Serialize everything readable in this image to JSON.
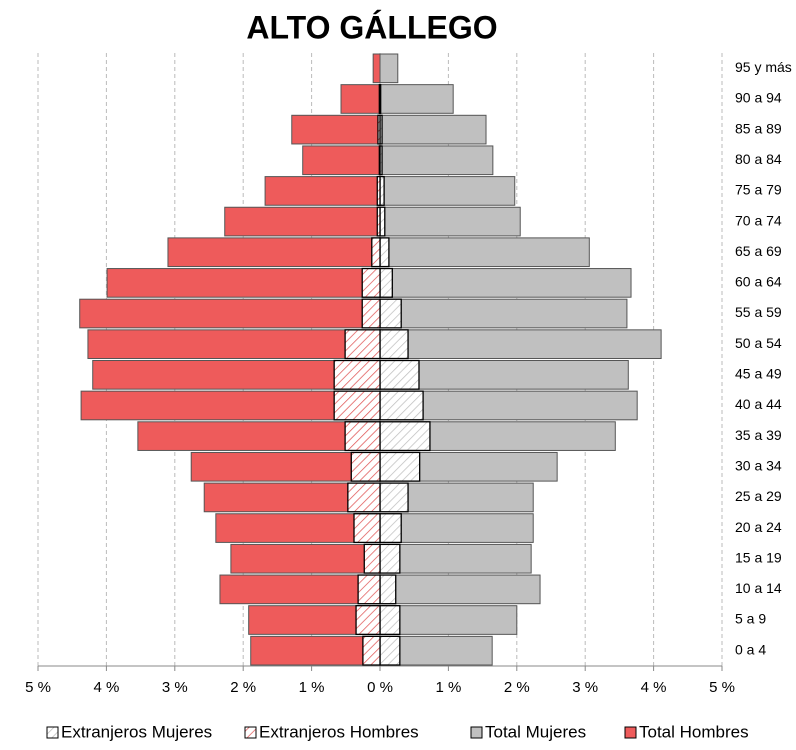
{
  "chart_data": {
    "type": "pyramid",
    "title": "ALTO GÁLLEGO",
    "categories": [
      "0 a 4",
      "5 a 9",
      "10 a 14",
      "15 a 19",
      "20 a 24",
      "25 a 29",
      "30 a 34",
      "35 a 39",
      "40 a 44",
      "45 a 49",
      "50 a 54",
      "55 a 59",
      "60 a 64",
      "65 a 69",
      "70 a 74",
      "75 a 79",
      "80 a 84",
      "85 a 89",
      "90 a 94",
      "95 y más"
    ],
    "series": [
      {
        "name": "Extranjeros Mujeres",
        "color": "#bfbfbf",
        "pattern": "hatch",
        "values": [
          0.29,
          0.29,
          0.23,
          0.29,
          0.31,
          0.41,
          0.58,
          0.73,
          0.63,
          0.57,
          0.41,
          0.31,
          0.18,
          0.13,
          0.07,
          0.06,
          0.03,
          0.03,
          0.01,
          0
        ]
      },
      {
        "name": "Extranjeros Hombres",
        "color": "#e05555",
        "pattern": "hatch",
        "values": [
          -0.25,
          -0.35,
          -0.32,
          -0.23,
          -0.38,
          -0.47,
          -0.42,
          -0.51,
          -0.67,
          -0.67,
          -0.51,
          -0.26,
          -0.26,
          -0.12,
          -0.04,
          -0.04,
          -0.01,
          -0.03,
          -0.01,
          0
        ]
      },
      {
        "name": "Total Mujeres",
        "color": "#c0c0c0",
        "values": [
          1.64,
          2.0,
          2.34,
          2.21,
          2.24,
          2.24,
          2.59,
          3.44,
          3.76,
          3.63,
          4.11,
          3.61,
          3.67,
          3.06,
          2.05,
          1.97,
          1.65,
          1.55,
          1.07,
          0.26
        ]
      },
      {
        "name": "Total Hombres",
        "color": "#ee5b5b",
        "values": [
          -1.89,
          -1.92,
          -2.34,
          -2.18,
          -2.4,
          -2.57,
          -2.76,
          -3.54,
          -4.37,
          -4.2,
          -4.27,
          -4.39,
          -3.99,
          -3.1,
          -2.27,
          -1.68,
          -1.13,
          -1.29,
          -0.57,
          -0.1
        ]
      }
    ],
    "xlim": [
      -5,
      5
    ],
    "xticks": [
      {
        "value": -5,
        "label": "5 %"
      },
      {
        "value": -4,
        "label": "4 %"
      },
      {
        "value": -3,
        "label": "3 %"
      },
      {
        "value": -2,
        "label": "2 %"
      },
      {
        "value": -1,
        "label": "1 %"
      },
      {
        "value": 0,
        "label": "0 %"
      },
      {
        "value": 1,
        "label": "1 %"
      },
      {
        "value": 2,
        "label": "2 %"
      },
      {
        "value": 3,
        "label": "3 %"
      },
      {
        "value": 4,
        "label": "4 %"
      },
      {
        "value": 5,
        "label": "5 %"
      }
    ],
    "grid": true,
    "legend": "bottom"
  }
}
